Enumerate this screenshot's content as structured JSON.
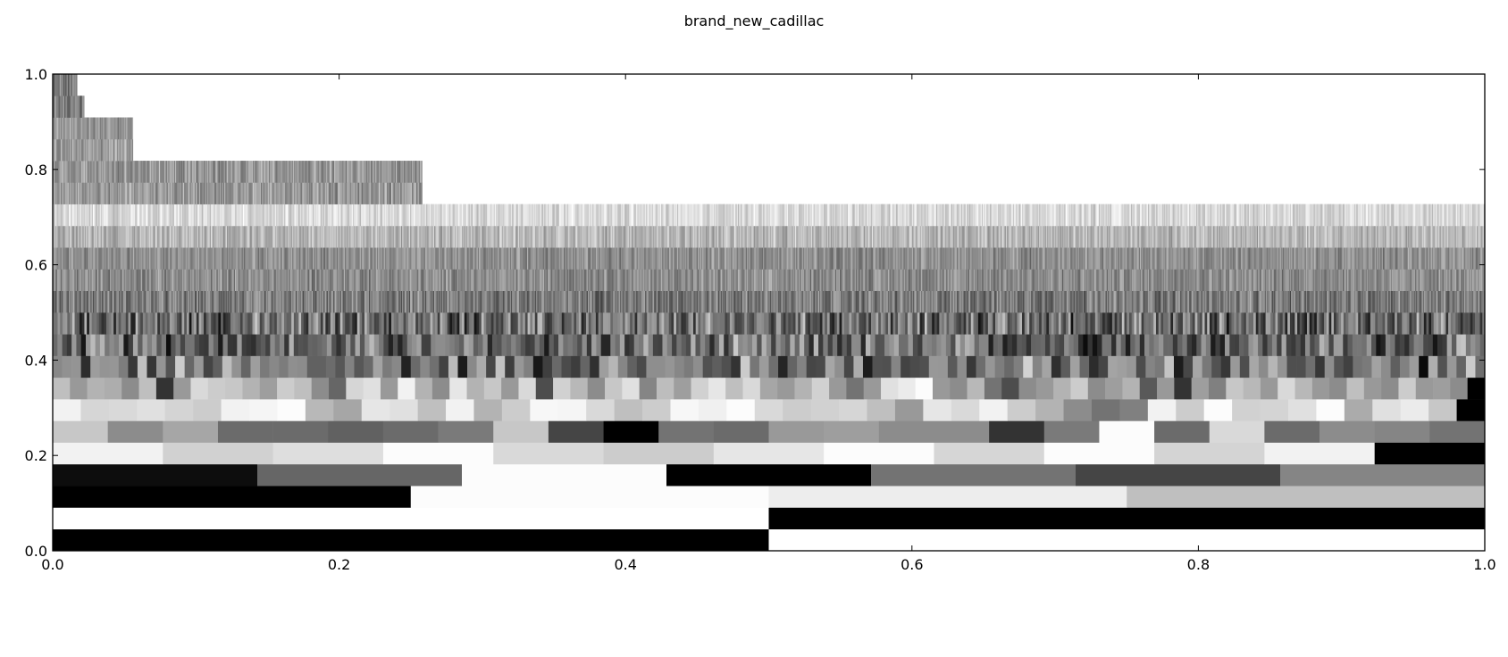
{
  "chart_data": {
    "type": "heatmap",
    "title": "brand_new_cadillac",
    "xlim": [
      0.0,
      1.0
    ],
    "ylim": [
      0.0,
      1.0
    ],
    "xticks": [
      0.0,
      0.2,
      0.4,
      0.6,
      0.8,
      1.0
    ],
    "yticks": [
      0.0,
      0.2,
      0.4,
      0.6,
      0.8,
      1.0
    ],
    "xtick_labels": [
      "0.0",
      "0.2",
      "0.4",
      "0.6",
      "0.8",
      "1.0"
    ],
    "ytick_labels": [
      "0.0",
      "0.2",
      "0.4",
      "0.6",
      "0.8",
      "1.0"
    ],
    "grid": false,
    "colormap": "gray",
    "band_height": 0.0455,
    "levels": [
      {
        "y0": 0.0,
        "x_end": 1.0,
        "values": [
          0.0,
          1.0
        ]
      },
      {
        "y0": 0.0455,
        "x_end": 1.0,
        "values": [
          1.0,
          0.0
        ]
      },
      {
        "y0": 0.0909,
        "x_end": 1.0,
        "values": [
          0.0,
          0.99,
          0.93,
          0.75
        ]
      },
      {
        "y0": 0.1364,
        "x_end": 1.0,
        "values": [
          0.05,
          0.4,
          0.99,
          0.0,
          0.45,
          0.27,
          0.52
        ]
      },
      {
        "y0": 0.1818,
        "x_end": 1.0,
        "values": [
          0.95,
          0.82,
          0.87,
          0.99,
          0.85,
          0.8,
          0.9,
          0.99,
          0.84,
          0.99,
          0.83,
          0.95,
          0.0
        ]
      },
      {
        "y0": 0.2273,
        "x_end": 1.0,
        "values": [
          0.78,
          0.55,
          0.65,
          0.42,
          0.42,
          0.38,
          0.42,
          0.48,
          0.78,
          0.27,
          0.0,
          0.45,
          0.42,
          0.6,
          0.62,
          0.55,
          0.55,
          0.2,
          0.48,
          0.99,
          0.42,
          0.85,
          0.42,
          0.55,
          0.52,
          0.45
        ]
      },
      {
        "y0": 0.2727,
        "x_end": 1.0,
        "values": [
          0.95,
          0.84,
          0.85,
          0.88,
          0.83,
          0.8,
          0.95,
          0.96,
          0.99,
          0.72,
          0.65,
          0.9,
          0.88,
          0.75,
          0.95,
          0.7,
          0.8,
          0.97,
          0.96,
          0.85,
          0.75,
          0.8,
          0.97,
          0.94,
          0.99,
          0.85,
          0.8,
          0.82,
          0.84,
          0.75,
          0.6,
          0.9,
          0.85,
          0.95,
          0.8,
          0.7,
          0.55,
          0.45,
          0.5,
          0.95,
          0.8,
          0.99,
          0.82,
          0.83,
          0.88,
          0.99,
          0.67,
          0.88,
          0.92,
          0.78,
          0.0
        ]
      },
      {
        "y0": 0.3182,
        "x_end": 1.0,
        "values": [
          0.75,
          0.6,
          0.7,
          0.68,
          0.55,
          0.75,
          0.2,
          0.6,
          0.85,
          0.8,
          0.78,
          0.7,
          0.62,
          0.8,
          0.75,
          0.55,
          0.4,
          0.84,
          0.88,
          0.6,
          0.95,
          0.7,
          0.55,
          0.9,
          0.7,
          0.78,
          0.6,
          0.85,
          0.3,
          0.82,
          0.72,
          0.55,
          0.78,
          0.88,
          0.52,
          0.74,
          0.62,
          0.82,
          0.9,
          0.75,
          0.85,
          0.65,
          0.6,
          0.7,
          0.82,
          0.6,
          0.45,
          0.6,
          0.88,
          0.92,
          0.99,
          0.6,
          0.55,
          0.72,
          0.45,
          0.3,
          0.55,
          0.6,
          0.7,
          0.8,
          0.55,
          0.62,
          0.7,
          0.35,
          0.6,
          0.2,
          0.62,
          0.5,
          0.78,
          0.72,
          0.6,
          0.85,
          0.72,
          0.6,
          0.55,
          0.75,
          0.6,
          0.55,
          0.8,
          0.6,
          0.62,
          0.55,
          0.0
        ]
      }
    ],
    "dense_levels": [
      {
        "y0": 0.3636,
        "x_end": 1.0,
        "mean": 0.45,
        "spread": 0.45,
        "strip_width": 0.0066
      },
      {
        "y0": 0.4091,
        "x_end": 1.0,
        "mean": 0.4,
        "spread": 0.4,
        "strip_width": 0.0033
      },
      {
        "y0": 0.4545,
        "x_end": 1.0,
        "mean": 0.42,
        "spread": 0.4,
        "strip_width": 0.0017
      },
      {
        "y0": 0.5,
        "x_end": 1.0,
        "mean": 0.48,
        "spread": 0.25,
        "strip_width": 0.0008
      },
      {
        "y0": 0.5455,
        "x_end": 1.0,
        "mean": 0.55,
        "spread": 0.2,
        "strip_width": 0.0008
      },
      {
        "y0": 0.5909,
        "x_end": 1.0,
        "mean": 0.56,
        "spread": 0.18,
        "strip_width": 0.0008
      },
      {
        "y0": 0.6364,
        "x_end": 1.0,
        "mean": 0.72,
        "spread": 0.2,
        "strip_width": 0.0008
      },
      {
        "y0": 0.6818,
        "x_end": 1.0,
        "mean": 0.85,
        "spread": 0.16,
        "strip_width": 0.0008
      },
      {
        "y0": 0.7273,
        "x_end": 0.258,
        "mean": 0.6,
        "spread": 0.22,
        "strip_width": 0.0008
      },
      {
        "y0": 0.7727,
        "x_end": 0.258,
        "mean": 0.58,
        "spread": 0.22,
        "strip_width": 0.0008
      },
      {
        "y0": 0.8182,
        "x_end": 0.056,
        "mean": 0.62,
        "spread": 0.2,
        "strip_width": 0.0008
      },
      {
        "y0": 0.8636,
        "x_end": 0.056,
        "mean": 0.6,
        "spread": 0.2,
        "strip_width": 0.0008
      },
      {
        "y0": 0.9091,
        "x_end": 0.022,
        "mean": 0.5,
        "spread": 0.25,
        "strip_width": 0.0008
      },
      {
        "y0": 0.9545,
        "x_end": 0.017,
        "mean": 0.45,
        "spread": 0.25,
        "strip_width": 0.0008
      }
    ]
  }
}
